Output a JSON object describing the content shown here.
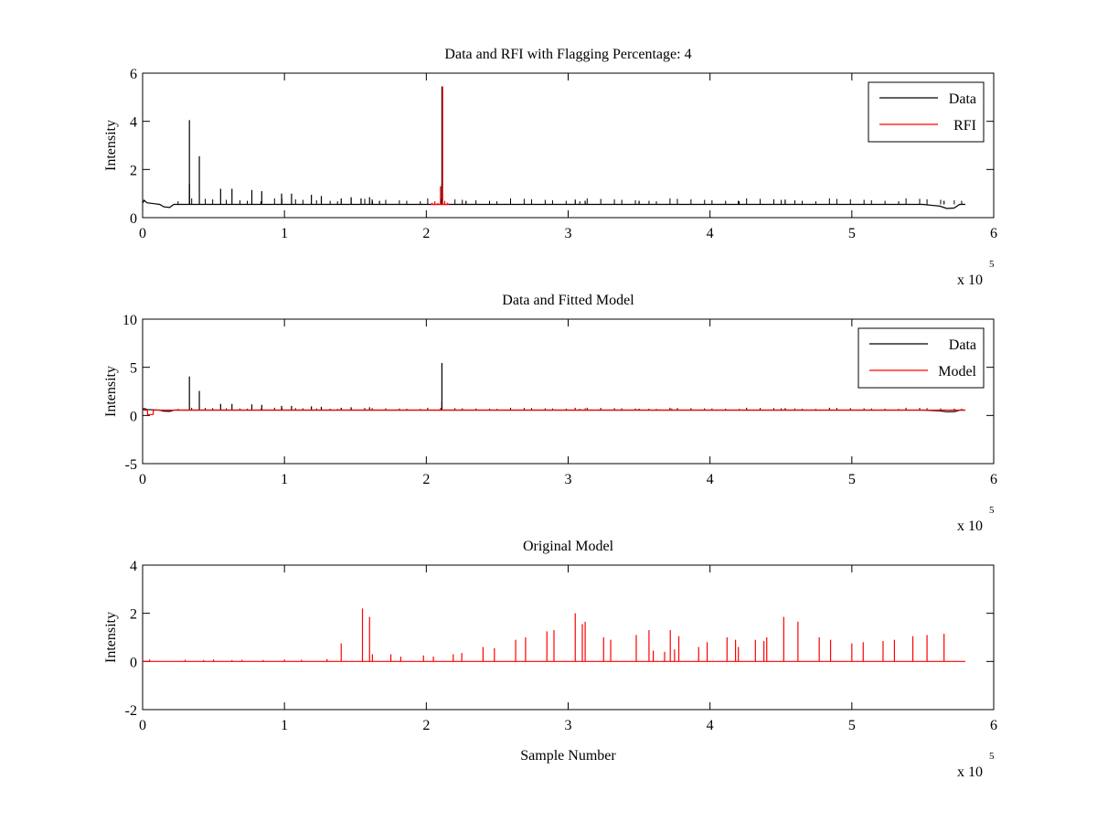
{
  "chart_data": [
    {
      "type": "line",
      "title": "Data and RFI with Flagging Percentage: 4",
      "xlabel": "",
      "ylabel": "Intensity",
      "xlim": [
        0,
        6
      ],
      "ylim": [
        0,
        6
      ],
      "xticks": [
        "0",
        "1",
        "2",
        "3",
        "4",
        "5",
        "6"
      ],
      "yticks": [
        "0",
        "2",
        "4",
        "6"
      ],
      "x_multiplier": "x 10",
      "x_exponent": "5",
      "legend_position": "top-right",
      "series": [
        {
          "name": "Data",
          "color": "#000000",
          "baseline": [
            [
              0,
              0.6
            ],
            [
              0.01,
              0.72
            ],
            [
              0.03,
              0.62
            ],
            [
              0.08,
              0.58
            ],
            [
              0.12,
              0.55
            ],
            [
              0.15,
              0.45
            ],
            [
              0.19,
              0.42
            ],
            [
              0.22,
              0.55
            ],
            [
              0.3,
              0.55
            ],
            [
              2.1,
              0.55
            ],
            [
              5.5,
              0.55
            ],
            [
              5.62,
              0.48
            ],
            [
              5.67,
              0.38
            ],
            [
              5.72,
              0.4
            ],
            [
              5.76,
              0.55
            ],
            [
              5.8,
              0.55
            ]
          ],
          "spikes": [
            [
              0.33,
              4.05
            ],
            [
              0.33,
              1.4
            ],
            [
              0.4,
              2.55
            ],
            [
              0.55,
              1.2
            ],
            [
              0.63,
              1.2
            ],
            [
              0.77,
              1.15
            ],
            [
              0.84,
              1.1
            ],
            [
              0.98,
              1.0
            ],
            [
              1.05,
              1.0
            ],
            [
              1.19,
              0.95
            ],
            [
              1.26,
              0.9
            ],
            [
              1.4,
              0.8
            ],
            [
              1.47,
              0.85
            ],
            [
              1.54,
              0.8
            ],
            [
              1.6,
              0.85
            ],
            [
              1.62,
              0.7
            ],
            [
              1.67,
              0.7
            ],
            [
              2.11,
              5.45
            ],
            [
              2.11,
              1.4
            ],
            [
              2.28,
              0.7
            ],
            [
              3.05,
              0.75
            ],
            [
              3.12,
              0.7
            ],
            [
              3.5,
              0.7
            ],
            [
              4.2,
              0.7
            ],
            [
              4.53,
              0.75
            ],
            [
              5.65,
              0.7
            ]
          ],
          "small_spike_height": 0.68
        },
        {
          "name": "RFI",
          "color": "#ff0000",
          "x_start": 2.03,
          "x_end": 2.16,
          "baseline": 0.55,
          "spikes": [
            [
              2.04,
              0.62
            ],
            [
              2.06,
              0.68
            ],
            [
              2.08,
              0.6
            ],
            [
              2.1,
              1.3
            ],
            [
              2.115,
              5.45
            ],
            [
              2.13,
              0.7
            ],
            [
              2.15,
              0.62
            ]
          ]
        }
      ]
    },
    {
      "type": "line",
      "title": "Data and Fitted Model",
      "xlabel": "",
      "ylabel": "Intensity",
      "xlim": [
        0,
        6
      ],
      "ylim": [
        -5,
        10
      ],
      "xticks": [
        "0",
        "1",
        "2",
        "3",
        "4",
        "5",
        "6"
      ],
      "yticks": [
        "-5",
        "0",
        "5",
        "10"
      ],
      "x_multiplier": "x 10",
      "x_exponent": "5",
      "legend_position": "top-right",
      "series": [
        {
          "name": "Data",
          "color": "#000000",
          "baseline": [
            [
              0,
              0.6
            ],
            [
              0.01,
              0.72
            ],
            [
              0.03,
              0.62
            ],
            [
              0.08,
              0.58
            ],
            [
              0.12,
              0.55
            ],
            [
              0.15,
              0.45
            ],
            [
              0.19,
              0.42
            ],
            [
              0.22,
              0.55
            ],
            [
              0.3,
              0.55
            ],
            [
              2.1,
              0.55
            ],
            [
              5.5,
              0.55
            ],
            [
              5.62,
              0.48
            ],
            [
              5.67,
              0.38
            ],
            [
              5.72,
              0.4
            ],
            [
              5.76,
              0.55
            ],
            [
              5.8,
              0.55
            ]
          ],
          "spikes": [
            [
              0.33,
              4.05
            ],
            [
              0.4,
              2.55
            ],
            [
              0.55,
              1.2
            ],
            [
              0.63,
              1.2
            ],
            [
              0.77,
              1.15
            ],
            [
              0.84,
              1.1
            ],
            [
              0.98,
              1.0
            ],
            [
              1.05,
              1.0
            ],
            [
              1.19,
              0.95
            ],
            [
              1.26,
              0.9
            ],
            [
              1.4,
              0.8
            ],
            [
              1.47,
              0.85
            ],
            [
              1.6,
              0.85
            ],
            [
              2.11,
              5.45
            ],
            [
              2.11,
              1.4
            ],
            [
              3.05,
              0.75
            ],
            [
              3.5,
              0.7
            ],
            [
              4.53,
              0.75
            ]
          ],
          "small_spike_height": 0.68
        },
        {
          "name": "Model",
          "color": "#ff0000",
          "baseline": [
            [
              0,
              0.55
            ],
            [
              0.035,
              0.55
            ],
            [
              0.035,
              0.1
            ],
            [
              0.075,
              0.1
            ],
            [
              0.075,
              0.55
            ],
            [
              5.8,
              0.55
            ]
          ],
          "spikes": [
            [
              1.6,
              0.7
            ],
            [
              2.1,
              0.75
            ],
            [
              3.05,
              0.8
            ],
            [
              3.12,
              0.75
            ],
            [
              3.73,
              0.72
            ]
          ]
        }
      ]
    },
    {
      "type": "line",
      "title": "Original Model",
      "xlabel": "Sample Number",
      "ylabel": "Intensity",
      "xlim": [
        0,
        6
      ],
      "ylim": [
        -2,
        4
      ],
      "xticks": [
        "0",
        "1",
        "2",
        "3",
        "4",
        "5",
        "6"
      ],
      "yticks": [
        "-2",
        "0",
        "2",
        "4"
      ],
      "x_multiplier": "x 10",
      "x_exponent": "5",
      "series": [
        {
          "color": "#ff0000",
          "baseline": [
            [
              0,
              0
            ],
            [
              5.8,
              0
            ]
          ],
          "spikes": [
            [
              0.05,
              0.08
            ],
            [
              0.3,
              0.07
            ],
            [
              0.43,
              0.06
            ],
            [
              0.5,
              0.08
            ],
            [
              0.63,
              0.06
            ],
            [
              0.7,
              0.07
            ],
            [
              0.85,
              0.06
            ],
            [
              1.0,
              0.08
            ],
            [
              1.12,
              0.07
            ],
            [
              1.3,
              0.1
            ],
            [
              1.4,
              0.75
            ],
            [
              1.55,
              2.2
            ],
            [
              1.6,
              1.85
            ],
            [
              1.62,
              0.3
            ],
            [
              1.75,
              0.3
            ],
            [
              1.82,
              0.2
            ],
            [
              1.98,
              0.25
            ],
            [
              2.05,
              0.2
            ],
            [
              2.19,
              0.3
            ],
            [
              2.25,
              0.35
            ],
            [
              2.4,
              0.6
            ],
            [
              2.48,
              0.55
            ],
            [
              2.63,
              0.9
            ],
            [
              2.7,
              1.0
            ],
            [
              2.85,
              1.25
            ],
            [
              2.9,
              1.3
            ],
            [
              3.05,
              2.0
            ],
            [
              3.1,
              1.55
            ],
            [
              3.12,
              1.65
            ],
            [
              3.25,
              1.0
            ],
            [
              3.3,
              0.9
            ],
            [
              3.48,
              1.1
            ],
            [
              3.57,
              1.3
            ],
            [
              3.6,
              0.45
            ],
            [
              3.68,
              0.4
            ],
            [
              3.72,
              1.3
            ],
            [
              3.75,
              0.5
            ],
            [
              3.78,
              1.05
            ],
            [
              3.92,
              0.6
            ],
            [
              3.98,
              0.8
            ],
            [
              4.12,
              1.0
            ],
            [
              4.18,
              0.9
            ],
            [
              4.2,
              0.6
            ],
            [
              4.32,
              0.9
            ],
            [
              4.38,
              0.85
            ],
            [
              4.4,
              1.0
            ],
            [
              4.52,
              1.85
            ],
            [
              4.62,
              1.65
            ],
            [
              4.77,
              1.0
            ],
            [
              4.85,
              0.9
            ],
            [
              5.0,
              0.75
            ],
            [
              5.08,
              0.8
            ],
            [
              5.22,
              0.85
            ],
            [
              5.3,
              0.9
            ],
            [
              5.43,
              1.05
            ],
            [
              5.53,
              1.1
            ],
            [
              5.65,
              1.15
            ]
          ]
        }
      ]
    }
  ]
}
